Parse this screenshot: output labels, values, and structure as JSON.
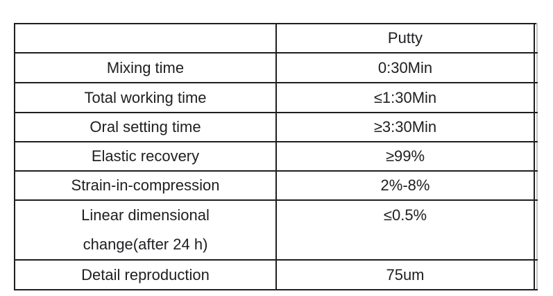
{
  "table": {
    "header": {
      "col1": "",
      "col2": "Putty"
    },
    "rows": [
      {
        "label": "Mixing time",
        "value": "0:30Min"
      },
      {
        "label": "Total working time",
        "value": "≤1:30Min"
      },
      {
        "label": "Oral setting time",
        "value": "≥3:30Min"
      },
      {
        "label": "Elastic recovery",
        "value": "≥99%"
      },
      {
        "label": "Strain-in-compression",
        "value": "2%-8%"
      },
      {
        "label_lines": [
          "Linear dimensional",
          "change(after 24 h)"
        ],
        "value": "≤0.5%"
      },
      {
        "label": "Detail reproduction",
        "value": "75um"
      }
    ]
  },
  "colors": {
    "border": "#1e1e1e",
    "text": "#202024",
    "background": "#ffffff"
  }
}
